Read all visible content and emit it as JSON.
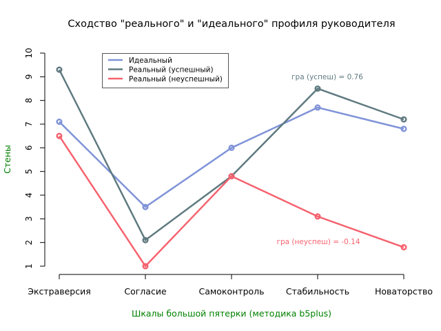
{
  "chart_data": {
    "type": "line",
    "title": "Сходство \"реального\" и \"идеального\" профиля руководителя",
    "xlabel": "Шкалы большой пятерки (методика b5plus)",
    "ylabel": "Стены",
    "categories": [
      "Экстраверсия",
      "Согласие",
      "Самоконтроль",
      "Стабильность",
      "Новаторство"
    ],
    "ylim": [
      1,
      10
    ],
    "yticks": [
      1,
      2,
      3,
      4,
      5,
      6,
      7,
      8,
      9,
      10
    ],
    "grid": false,
    "legend_position": "top-left",
    "series": [
      {
        "name": "Идеальный",
        "color": "#7f93d8",
        "values": [
          7.1,
          3.5,
          6.0,
          7.7,
          6.8
        ]
      },
      {
        "name": "Реальный (успешный)",
        "color": "#5f7a80",
        "values": [
          9.3,
          2.1,
          4.8,
          8.5,
          7.2
        ]
      },
      {
        "name": "Реальный (неуспешный)",
        "color": "#f5626e",
        "values": [
          6.5,
          1.0,
          4.8,
          3.1,
          1.8
        ]
      }
    ],
    "annotations": [
      {
        "text": "гра (успеш) =  0.76",
        "color": "#5f7a80",
        "series": 1
      },
      {
        "text": "гра (неуспеш) =  -0.14",
        "color": "#f5626e",
        "series": 2
      }
    ],
    "label_color": "#008000"
  }
}
